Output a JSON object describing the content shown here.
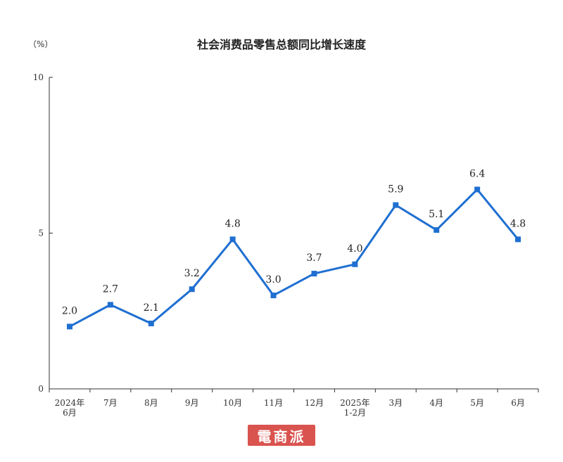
{
  "chart_data": {
    "type": "line",
    "title": "社会消费品零售总额同比增长速度",
    "unit_label": "（%）",
    "categories": [
      [
        "2024年",
        "6月"
      ],
      [
        "7月"
      ],
      [
        "8月"
      ],
      [
        "9月"
      ],
      [
        "10月"
      ],
      [
        "11月"
      ],
      [
        "12月"
      ],
      [
        "2025年",
        "1-2月"
      ],
      [
        "3月"
      ],
      [
        "4月"
      ],
      [
        "5月"
      ],
      [
        "6月"
      ]
    ],
    "series": [
      {
        "values": [
          2.0,
          2.7,
          2.1,
          3.2,
          4.8,
          3.0,
          3.7,
          4.0,
          5.9,
          5.1,
          6.4,
          4.8
        ],
        "data_labels": [
          "2.0",
          "2.7",
          "2.1",
          "3.2",
          "4.8",
          "3.0",
          "3.7",
          "4.0",
          "5.9",
          "5.1",
          "6.4",
          "4.8"
        ],
        "color": "#1f6fd1"
      }
    ],
    "yticks": [
      "0",
      "5",
      "10"
    ],
    "ylim": [
      0,
      10
    ],
    "grid": false,
    "legend": "none"
  },
  "watermark": "電商派"
}
